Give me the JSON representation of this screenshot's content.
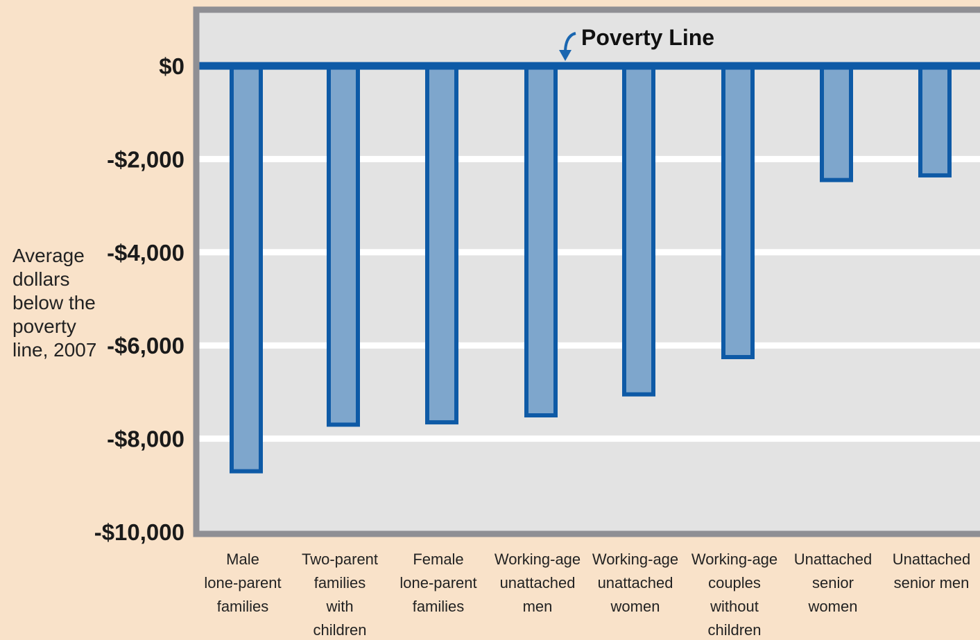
{
  "chart_data": {
    "type": "bar",
    "ylabel_lines": [
      "Average",
      "dollars",
      "below the",
      "poverty",
      "line, 2007"
    ],
    "categories": [
      [
        "Male",
        "lone-parent",
        "families"
      ],
      [
        "Two-parent",
        "families",
        "with",
        "children"
      ],
      [
        "Female",
        "lone-parent",
        "families"
      ],
      [
        "Working-age",
        "unattached",
        "men"
      ],
      [
        "Working-age",
        "unattached",
        "women"
      ],
      [
        "Working-age",
        "couples",
        "without",
        "children"
      ],
      [
        "Unattached",
        "senior",
        "women"
      ],
      [
        "Unattached",
        "senior men"
      ]
    ],
    "values": [
      -8700,
      -7700,
      -7650,
      -7500,
      -7050,
      -6250,
      -2450,
      -2350
    ],
    "ylim": [
      -10000,
      0
    ],
    "yticks": [
      0,
      -2000,
      -4000,
      -6000,
      -8000,
      -10000
    ],
    "ytick_labels": [
      "$0",
      "-$2,000",
      "-$4,000",
      "-$6,000",
      "-$8,000",
      "-$10,000"
    ],
    "annotation": "Poverty Line",
    "grid": true,
    "colors": {
      "bar_fill": "#7ea6cc",
      "bar_stroke": "#0e5aa6",
      "plot_bg": "#e3e3e3",
      "page_bg": "#f9e2c9",
      "frame": "#8f8f94",
      "grid": "#ffffff"
    }
  }
}
